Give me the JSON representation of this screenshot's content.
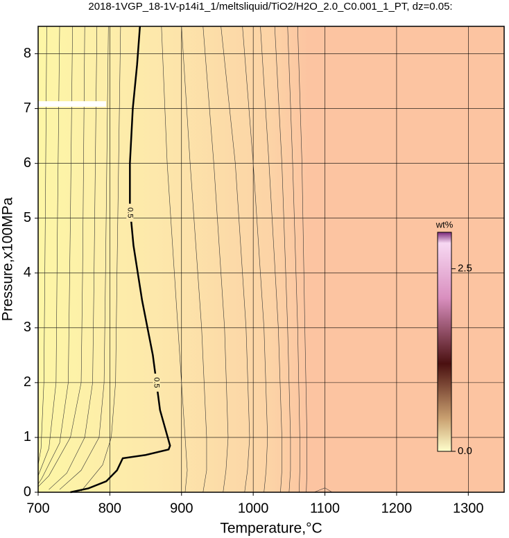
{
  "chart_data": {
    "type": "contour",
    "title": "2018-1VGP_18-1V-p14i1_1/meltsliquid/TiO2/H2O_2.0_C0.001_1_PT, dz=0.05:",
    "x_label": "Temperature,°C",
    "y_label": "Pressure,x100MPa",
    "xlim": [
      700,
      1350
    ],
    "ylim": [
      0,
      8.5
    ],
    "xticks": [
      700,
      800,
      900,
      1000,
      1100,
      1200,
      1300
    ],
    "yticks": [
      0,
      1,
      2,
      3,
      4,
      5,
      6,
      7,
      8
    ],
    "grid": true,
    "contours": [
      {
        "level": 0.5,
        "color": "#000000",
        "x": [
          745,
          770,
          795,
          810,
          818,
          850,
          882,
          884,
          870,
          860,
          845,
          833,
          828,
          828,
          832,
          838,
          842
        ],
        "y": [
          0,
          0.07,
          0.2,
          0.4,
          0.62,
          0.68,
          0.78,
          0.85,
          1.5,
          2.5,
          3.5,
          4.5,
          5.2,
          6.0,
          7.0,
          7.8,
          8.5
        ]
      }
    ],
    "thin_contours": [
      {
        "x": [
          712,
          710,
          708,
          704,
          700
        ],
        "y": [
          8.5,
          5,
          2,
          0.8,
          0.5
        ]
      },
      {
        "x": [
          730,
          727,
          725,
          715,
          700
        ],
        "y": [
          8.5,
          5,
          2,
          0.8,
          0.3
        ]
      },
      {
        "x": [
          748,
          745,
          742,
          730,
          705,
          700
        ],
        "y": [
          8.5,
          5,
          2,
          0.9,
          0.25,
          0.15
        ]
      },
      {
        "x": [
          765,
          762,
          760,
          745,
          715,
          700
        ],
        "y": [
          8.5,
          4,
          2,
          1,
          0.3,
          0.1
        ]
      },
      {
        "x": [
          782,
          778,
          776,
          765,
          740,
          715
        ],
        "y": [
          8.5,
          4,
          2,
          1,
          0.35,
          0.05
        ]
      },
      {
        "x": [
          798,
          794,
          792,
          785,
          760,
          730
        ],
        "y": [
          8.5,
          4,
          2,
          1,
          0.4,
          0.05
        ]
      },
      {
        "x": [
          815,
          810,
          808,
          802,
          790,
          760
        ],
        "y": [
          8.5,
          4,
          2,
          1,
          0.5,
          0.02
        ]
      },
      {
        "x": [
          872,
          880,
          895,
          905,
          908,
          905
        ],
        "y": [
          8.5,
          6,
          3,
          1,
          0.4,
          0
        ]
      },
      {
        "x": [
          900,
          912,
          928,
          935,
          935,
          930
        ],
        "y": [
          8.5,
          6,
          3,
          1,
          0.4,
          0
        ]
      },
      {
        "x": [
          930,
          945,
          960,
          965,
          962,
          958
        ],
        "y": [
          8.5,
          6,
          3,
          1,
          0.4,
          0
        ]
      },
      {
        "x": [
          955,
          975,
          990,
          995,
          992,
          988
        ],
        "y": [
          8.5,
          6,
          3,
          1,
          0.4,
          0
        ]
      },
      {
        "x": [
          985,
          1000,
          1015,
          1020,
          1018,
          1015
        ],
        "y": [
          8.5,
          6,
          3,
          1,
          0.4,
          0
        ]
      },
      {
        "x": [
          1010,
          1022,
          1035,
          1040,
          1040,
          1038
        ],
        "y": [
          8.5,
          6,
          3,
          1,
          0.4,
          0
        ]
      },
      {
        "x": [
          1030,
          1040,
          1048,
          1052,
          1052,
          1050
        ],
        "y": [
          8.5,
          6,
          3,
          1,
          0.4,
          0
        ]
      },
      {
        "x": [
          1048,
          1055,
          1062,
          1065,
          1065,
          1064
        ],
        "y": [
          8.5,
          6,
          3,
          1,
          0.4,
          0
        ]
      },
      {
        "x": [
          1062,
          1068,
          1072,
          1075,
          1075,
          1074
        ],
        "y": [
          8.5,
          6,
          3,
          1,
          0.4,
          0
        ]
      },
      {
        "x": [
          1085,
          1100,
          1110
        ],
        "y": [
          0,
          0.08,
          0
        ]
      }
    ],
    "colorbar": {
      "label": "wt%",
      "clim": [
        0,
        3.0
      ],
      "ticks": [
        {
          "value": 0,
          "label": "0.0"
        },
        2.5
      ]
    }
  }
}
